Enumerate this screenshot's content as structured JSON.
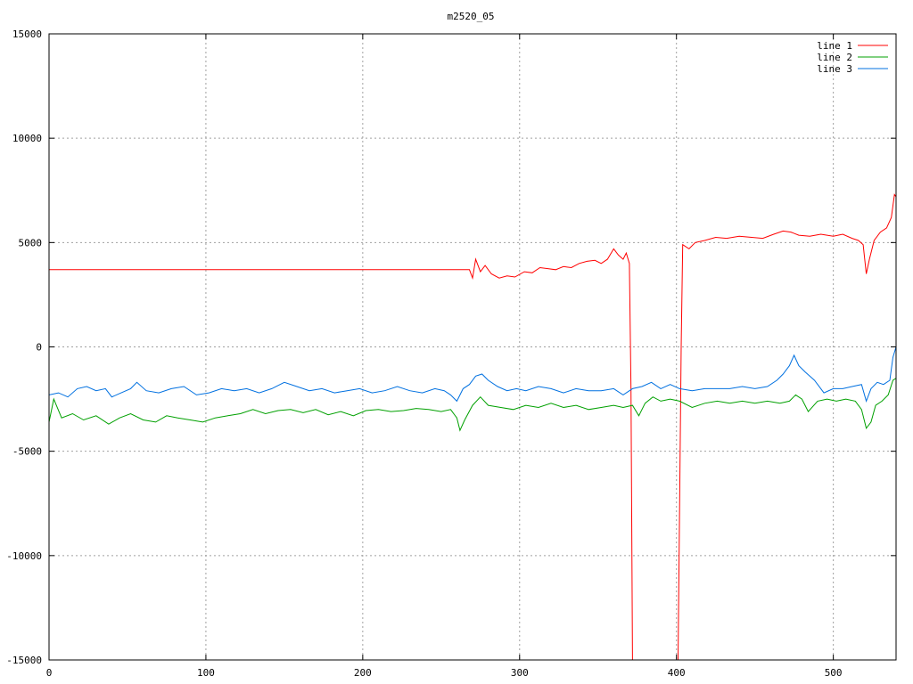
{
  "chart_data": {
    "type": "line",
    "title": "m2520_05",
    "xlabel": "",
    "ylabel": "",
    "xlim": [
      0,
      540
    ],
    "ylim": [
      -15000,
      15000
    ],
    "xticks": [
      0,
      100,
      200,
      300,
      400,
      500
    ],
    "yticks": [
      -15000,
      -10000,
      -5000,
      0,
      5000,
      10000,
      15000
    ],
    "grid": true,
    "legend_position": "top-right",
    "series": [
      {
        "name": "line 1",
        "color": "#ff0000",
        "points": [
          [
            0,
            3700
          ],
          [
            100,
            3700
          ],
          [
            200,
            3700
          ],
          [
            268,
            3700
          ],
          [
            270,
            3300
          ],
          [
            272,
            4200
          ],
          [
            275,
            3600
          ],
          [
            278,
            3900
          ],
          [
            282,
            3500
          ],
          [
            287,
            3300
          ],
          [
            292,
            3400
          ],
          [
            297,
            3350
          ],
          [
            303,
            3600
          ],
          [
            308,
            3550
          ],
          [
            313,
            3800
          ],
          [
            318,
            3750
          ],
          [
            323,
            3700
          ],
          [
            328,
            3850
          ],
          [
            333,
            3800
          ],
          [
            338,
            4000
          ],
          [
            343,
            4100
          ],
          [
            348,
            4150
          ],
          [
            352,
            4000
          ],
          [
            356,
            4200
          ],
          [
            360,
            4700
          ],
          [
            363,
            4400
          ],
          [
            366,
            4200
          ],
          [
            368,
            4500
          ],
          [
            370,
            4000
          ],
          [
            371,
            -2000
          ],
          [
            372,
            -15000
          ],
          [
            401,
            -15000
          ],
          [
            403,
            0
          ],
          [
            404,
            4900
          ],
          [
            408,
            4700
          ],
          [
            412,
            5000
          ],
          [
            418,
            5100
          ],
          [
            425,
            5250
          ],
          [
            432,
            5200
          ],
          [
            440,
            5300
          ],
          [
            448,
            5250
          ],
          [
            455,
            5200
          ],
          [
            462,
            5400
          ],
          [
            468,
            5550
          ],
          [
            473,
            5500
          ],
          [
            478,
            5350
          ],
          [
            485,
            5300
          ],
          [
            492,
            5400
          ],
          [
            500,
            5300
          ],
          [
            506,
            5400
          ],
          [
            512,
            5200
          ],
          [
            516,
            5100
          ],
          [
            519,
            4900
          ],
          [
            521,
            3500
          ],
          [
            523,
            4200
          ],
          [
            526,
            5100
          ],
          [
            530,
            5500
          ],
          [
            534,
            5700
          ],
          [
            537,
            6200
          ],
          [
            539,
            7300
          ],
          [
            540,
            7200
          ]
        ]
      },
      {
        "name": "line 2",
        "color": "#00a000",
        "points": [
          [
            0,
            -3600
          ],
          [
            3,
            -2500
          ],
          [
            8,
            -3400
          ],
          [
            15,
            -3200
          ],
          [
            22,
            -3500
          ],
          [
            30,
            -3300
          ],
          [
            38,
            -3700
          ],
          [
            45,
            -3400
          ],
          [
            52,
            -3200
          ],
          [
            60,
            -3500
          ],
          [
            68,
            -3600
          ],
          [
            75,
            -3300
          ],
          [
            82,
            -3400
          ],
          [
            90,
            -3500
          ],
          [
            98,
            -3600
          ],
          [
            106,
            -3400
          ],
          [
            114,
            -3300
          ],
          [
            122,
            -3200
          ],
          [
            130,
            -3000
          ],
          [
            138,
            -3200
          ],
          [
            146,
            -3050
          ],
          [
            154,
            -3000
          ],
          [
            162,
            -3150
          ],
          [
            170,
            -3000
          ],
          [
            178,
            -3250
          ],
          [
            186,
            -3100
          ],
          [
            194,
            -3300
          ],
          [
            202,
            -3050
          ],
          [
            210,
            -3000
          ],
          [
            218,
            -3100
          ],
          [
            226,
            -3050
          ],
          [
            234,
            -2950
          ],
          [
            242,
            -3000
          ],
          [
            250,
            -3100
          ],
          [
            256,
            -3000
          ],
          [
            260,
            -3400
          ],
          [
            262,
            -4000
          ],
          [
            265,
            -3500
          ],
          [
            270,
            -2800
          ],
          [
            275,
            -2400
          ],
          [
            280,
            -2800
          ],
          [
            288,
            -2900
          ],
          [
            296,
            -3000
          ],
          [
            304,
            -2800
          ],
          [
            312,
            -2900
          ],
          [
            320,
            -2700
          ],
          [
            328,
            -2900
          ],
          [
            336,
            -2800
          ],
          [
            344,
            -3000
          ],
          [
            352,
            -2900
          ],
          [
            360,
            -2800
          ],
          [
            366,
            -2900
          ],
          [
            372,
            -2800
          ],
          [
            376,
            -3300
          ],
          [
            380,
            -2700
          ],
          [
            385,
            -2400
          ],
          [
            390,
            -2600
          ],
          [
            396,
            -2500
          ],
          [
            402,
            -2600
          ],
          [
            410,
            -2900
          ],
          [
            418,
            -2700
          ],
          [
            426,
            -2600
          ],
          [
            434,
            -2700
          ],
          [
            442,
            -2600
          ],
          [
            450,
            -2700
          ],
          [
            458,
            -2600
          ],
          [
            466,
            -2700
          ],
          [
            472,
            -2600
          ],
          [
            476,
            -2300
          ],
          [
            480,
            -2500
          ],
          [
            484,
            -3100
          ],
          [
            490,
            -2600
          ],
          [
            496,
            -2500
          ],
          [
            502,
            -2600
          ],
          [
            508,
            -2500
          ],
          [
            514,
            -2600
          ],
          [
            518,
            -3000
          ],
          [
            521,
            -3900
          ],
          [
            524,
            -3600
          ],
          [
            527,
            -2800
          ],
          [
            531,
            -2600
          ],
          [
            535,
            -2300
          ],
          [
            538,
            -1600
          ],
          [
            540,
            -1500
          ]
        ]
      },
      {
        "name": "line 3",
        "color": "#0070e0",
        "points": [
          [
            0,
            -2300
          ],
          [
            6,
            -2200
          ],
          [
            12,
            -2400
          ],
          [
            18,
            -2000
          ],
          [
            24,
            -1900
          ],
          [
            30,
            -2100
          ],
          [
            36,
            -2000
          ],
          [
            40,
            -2400
          ],
          [
            46,
            -2200
          ],
          [
            52,
            -2000
          ],
          [
            56,
            -1700
          ],
          [
            62,
            -2100
          ],
          [
            70,
            -2200
          ],
          [
            78,
            -2000
          ],
          [
            86,
            -1900
          ],
          [
            94,
            -2300
          ],
          [
            102,
            -2200
          ],
          [
            110,
            -2000
          ],
          [
            118,
            -2100
          ],
          [
            126,
            -2000
          ],
          [
            134,
            -2200
          ],
          [
            142,
            -2000
          ],
          [
            150,
            -1700
          ],
          [
            158,
            -1900
          ],
          [
            166,
            -2100
          ],
          [
            174,
            -2000
          ],
          [
            182,
            -2200
          ],
          [
            190,
            -2100
          ],
          [
            198,
            -2000
          ],
          [
            206,
            -2200
          ],
          [
            214,
            -2100
          ],
          [
            222,
            -1900
          ],
          [
            230,
            -2100
          ],
          [
            238,
            -2200
          ],
          [
            246,
            -2000
          ],
          [
            252,
            -2100
          ],
          [
            256,
            -2300
          ],
          [
            260,
            -2600
          ],
          [
            264,
            -2000
          ],
          [
            268,
            -1800
          ],
          [
            272,
            -1400
          ],
          [
            276,
            -1300
          ],
          [
            280,
            -1600
          ],
          [
            286,
            -1900
          ],
          [
            292,
            -2100
          ],
          [
            298,
            -2000
          ],
          [
            304,
            -2100
          ],
          [
            312,
            -1900
          ],
          [
            320,
            -2000
          ],
          [
            328,
            -2200
          ],
          [
            336,
            -2000
          ],
          [
            344,
            -2100
          ],
          [
            352,
            -2100
          ],
          [
            360,
            -2000
          ],
          [
            366,
            -2300
          ],
          [
            372,
            -2000
          ],
          [
            378,
            -1900
          ],
          [
            384,
            -1700
          ],
          [
            390,
            -2000
          ],
          [
            396,
            -1800
          ],
          [
            402,
            -2000
          ],
          [
            410,
            -2100
          ],
          [
            418,
            -2000
          ],
          [
            426,
            -2000
          ],
          [
            434,
            -2000
          ],
          [
            442,
            -1900
          ],
          [
            450,
            -2000
          ],
          [
            458,
            -1900
          ],
          [
            464,
            -1600
          ],
          [
            468,
            -1300
          ],
          [
            472,
            -900
          ],
          [
            475,
            -400
          ],
          [
            478,
            -900
          ],
          [
            482,
            -1200
          ],
          [
            488,
            -1600
          ],
          [
            494,
            -2200
          ],
          [
            500,
            -2000
          ],
          [
            506,
            -2000
          ],
          [
            512,
            -1900
          ],
          [
            518,
            -1800
          ],
          [
            521,
            -2600
          ],
          [
            524,
            -2000
          ],
          [
            528,
            -1700
          ],
          [
            532,
            -1800
          ],
          [
            536,
            -1600
          ],
          [
            538,
            -500
          ],
          [
            540,
            0
          ]
        ]
      }
    ]
  }
}
